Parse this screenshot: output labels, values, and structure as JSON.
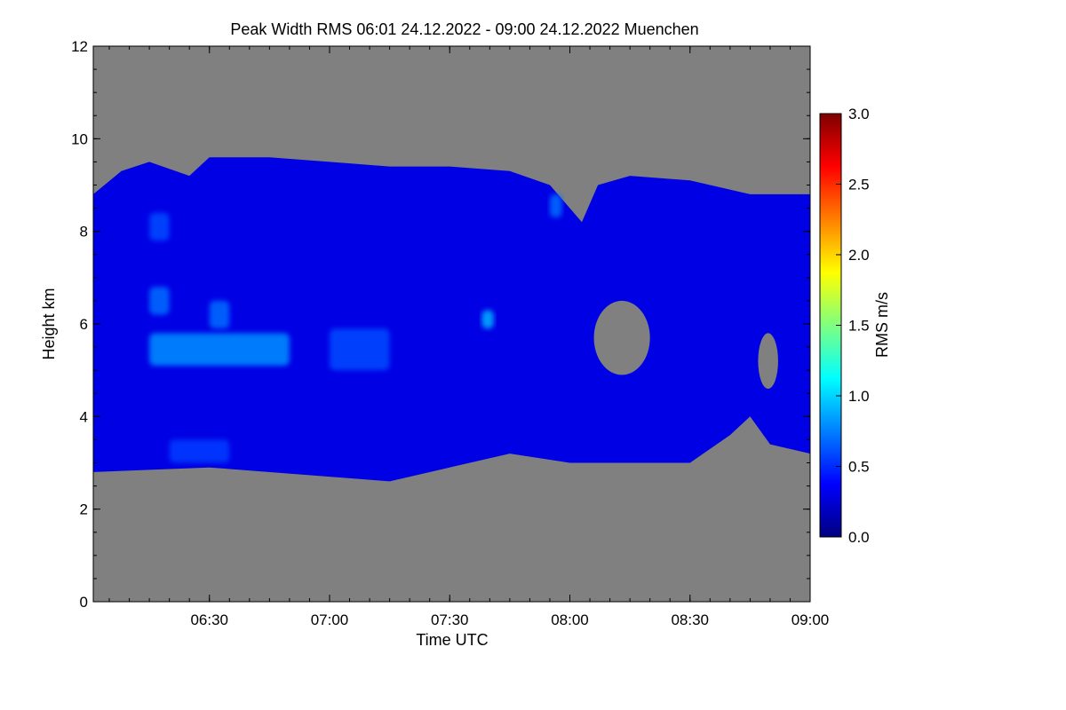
{
  "chart_data": {
    "type": "heatmap",
    "title": "Peak Width RMS   06:01 24.12.2022 - 09:00 24.12.2022 Muenchen",
    "xlabel": "Time UTC",
    "ylabel": "Height km",
    "x_range": [
      "06:01",
      "09:00"
    ],
    "x_ticks": [
      "06:30",
      "07:00",
      "07:30",
      "08:00",
      "08:30",
      "09:00"
    ],
    "ylim": [
      0,
      12
    ],
    "y_ticks": [
      0,
      2,
      4,
      6,
      8,
      10,
      12
    ],
    "colorbar": {
      "label": "RMS m/s",
      "range": [
        0.0,
        3.0
      ],
      "ticks": [
        "0.0",
        "0.5",
        "1.0",
        "1.5",
        "2.0",
        "2.5",
        "3.0"
      ],
      "colormap": "jet"
    },
    "no_data_color": "#808080",
    "echo_layer": {
      "top_km": [
        {
          "t": "06:01",
          "h": 8.8
        },
        {
          "t": "06:08",
          "h": 9.3
        },
        {
          "t": "06:15",
          "h": 9.5
        },
        {
          "t": "06:25",
          "h": 9.2
        },
        {
          "t": "06:30",
          "h": 9.6
        },
        {
          "t": "06:45",
          "h": 9.6
        },
        {
          "t": "07:00",
          "h": 9.5
        },
        {
          "t": "07:15",
          "h": 9.4
        },
        {
          "t": "07:30",
          "h": 9.4
        },
        {
          "t": "07:45",
          "h": 9.3
        },
        {
          "t": "07:55",
          "h": 9.0
        },
        {
          "t": "08:00",
          "h": 8.5
        },
        {
          "t": "08:03",
          "h": 8.2
        },
        {
          "t": "08:07",
          "h": 9.0
        },
        {
          "t": "08:15",
          "h": 9.2
        },
        {
          "t": "08:30",
          "h": 9.1
        },
        {
          "t": "08:45",
          "h": 8.8
        },
        {
          "t": "09:00",
          "h": 8.8
        }
      ],
      "base_km": [
        {
          "t": "06:01",
          "h": 2.8
        },
        {
          "t": "06:30",
          "h": 2.9
        },
        {
          "t": "07:00",
          "h": 2.7
        },
        {
          "t": "07:15",
          "h": 2.6
        },
        {
          "t": "07:30",
          "h": 2.9
        },
        {
          "t": "07:45",
          "h": 3.2
        },
        {
          "t": "08:00",
          "h": 3.0
        },
        {
          "t": "08:15",
          "h": 3.0
        },
        {
          "t": "08:30",
          "h": 3.0
        },
        {
          "t": "08:40",
          "h": 3.6
        },
        {
          "t": "08:45",
          "h": 4.0
        },
        {
          "t": "08:50",
          "h": 3.4
        },
        {
          "t": "09:00",
          "h": 3.2
        }
      ],
      "typical_rms_m_s": 0.3
    },
    "enhanced_regions": [
      {
        "t_start": "06:15",
        "t_end": "06:50",
        "h_low": 5.1,
        "h_high": 5.8,
        "rms_m_s": 0.8
      },
      {
        "t_start": "06:15",
        "t_end": "06:20",
        "h_low": 6.2,
        "h_high": 6.8,
        "rms_m_s": 0.7
      },
      {
        "t_start": "06:30",
        "t_end": "06:35",
        "h_low": 5.9,
        "h_high": 6.5,
        "rms_m_s": 0.7
      },
      {
        "t_start": "07:00",
        "t_end": "07:15",
        "h_low": 5.0,
        "h_high": 5.9,
        "rms_m_s": 0.6
      },
      {
        "t_start": "07:38",
        "t_end": "07:41",
        "h_low": 5.9,
        "h_high": 6.3,
        "rms_m_s": 0.9
      },
      {
        "t_start": "06:15",
        "t_end": "06:20",
        "h_low": 7.8,
        "h_high": 8.4,
        "rms_m_s": 0.6
      },
      {
        "t_start": "07:55",
        "t_end": "07:58",
        "h_low": 8.3,
        "h_high": 8.8,
        "rms_m_s": 0.7
      },
      {
        "t_start": "06:20",
        "t_end": "06:35",
        "h_low": 3.0,
        "h_high": 3.5,
        "rms_m_s": 0.55
      }
    ],
    "gaps": [
      {
        "t_start": "08:06",
        "t_end": "08:20",
        "h_low": 4.9,
        "h_high": 6.5
      },
      {
        "t_start": "08:47",
        "t_end": "08:52",
        "h_low": 4.6,
        "h_high": 5.8
      }
    ]
  }
}
